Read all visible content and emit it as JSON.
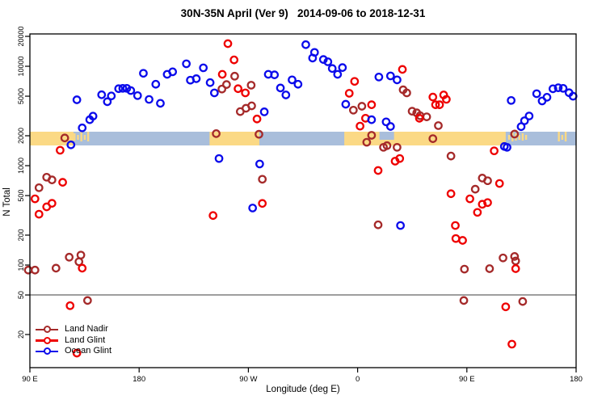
{
  "chart_data": {
    "type": "scatter",
    "title": "30N-35N April (Ver 9)   2014-09-06 to 2018-12-31",
    "xlabel": "Longitude (deg E)",
    "ylabel": "N Total",
    "x_axis": {
      "range_deg": [
        90,
        540
      ],
      "ticks_deg": [
        90,
        180,
        270,
        360,
        450,
        540
      ],
      "tick_labels": [
        "90 E",
        "180",
        "90 W",
        "0",
        "90 E",
        "180"
      ],
      "note": "axis wraps eastward from 90E around the globe to 180"
    },
    "y_axis": {
      "scale": "log",
      "ticks": [
        20000,
        10000,
        5000,
        2000,
        1000,
        500,
        200,
        100,
        50,
        20
      ],
      "range": [
        12,
        22000
      ]
    },
    "reference_line_y": 50,
    "legend_position": "bottom-left-inside",
    "grid": false,
    "legend": [
      {
        "id": "land-nadir",
        "name": "Land Nadir",
        "color": "#A52A2A"
      },
      {
        "id": "land-glint",
        "name": "Land Glint",
        "color": "#EE0000"
      },
      {
        "id": "ocean-glint",
        "name": "Ocean Glint",
        "color": "#0B0BEB"
      }
    ],
    "map_strip": {
      "center_value": 2000,
      "sea_color": "#A9BEDB",
      "land_color": "#FBD985",
      "land_segments_deg": [
        [
          90,
          126
        ],
        [
          238,
          279
        ],
        [
          349,
          482
        ]
      ],
      "sea_notches_deg": [
        [
          378,
          390
        ]
      ],
      "island_speckles_deg": [
        [
          126,
          137.5
        ],
        [
          484,
          498
        ],
        [
          525,
          532
        ]
      ]
    },
    "series": [
      {
        "id": "land-nadir",
        "name": "Land Nadir",
        "color": "#A52A2A",
        "points": [
          [
            88.7,
            89
          ],
          [
            94.2,
            89
          ],
          [
            97.5,
            600
          ],
          [
            103.8,
            765
          ],
          [
            108.2,
            719
          ],
          [
            111.5,
            93
          ],
          [
            118.7,
            1900
          ],
          [
            122.4,
            120
          ],
          [
            130.4,
            108
          ],
          [
            132,
            126
          ],
          [
            137.5,
            44
          ],
          [
            243.5,
            2100
          ],
          [
            248.2,
            5900
          ],
          [
            252,
            6550
          ],
          [
            258.7,
            7950
          ],
          [
            263.3,
            3500
          ],
          [
            268,
            3780
          ],
          [
            272.3,
            6450
          ],
          [
            272.7,
            4000
          ],
          [
            278.7,
            2070
          ],
          [
            281.5,
            730
          ],
          [
            356.5,
            3620
          ],
          [
            363.5,
            3960
          ],
          [
            367.5,
            1720
          ],
          [
            371.5,
            2020
          ],
          [
            376.9,
            254
          ],
          [
            381.3,
            1530
          ],
          [
            384.2,
            1590
          ],
          [
            392.5,
            1530
          ],
          [
            397.5,
            5800
          ],
          [
            400.5,
            5400
          ],
          [
            404.9,
            3530
          ],
          [
            408.7,
            3400
          ],
          [
            411.5,
            3180
          ],
          [
            416.9,
            3100
          ],
          [
            422,
            1870
          ],
          [
            426.5,
            2530
          ],
          [
            436.9,
            1250
          ],
          [
            447.5,
            44
          ],
          [
            448,
            91
          ],
          [
            456.9,
            580
          ],
          [
            462.7,
            750
          ],
          [
            467.1,
            705
          ],
          [
            468.7,
            92
          ],
          [
            479.8,
            118
          ],
          [
            489.3,
            2080
          ],
          [
            489.3,
            122
          ],
          [
            490.2,
            110
          ],
          [
            496,
            43
          ]
        ]
      },
      {
        "id": "land-glint",
        "name": "Land Glint",
        "color": "#EE0000",
        "points": [
          [
            94.2,
            464
          ],
          [
            97.5,
            325
          ],
          [
            103.8,
            385
          ],
          [
            108.2,
            418
          ],
          [
            114.9,
            1430
          ],
          [
            117,
            680
          ],
          [
            123.1,
            39
          ],
          [
            128.7,
            13
          ],
          [
            133.1,
            93
          ],
          [
            240.9,
            315
          ],
          [
            248.5,
            8300
          ],
          [
            253.1,
            16900
          ],
          [
            258.2,
            11600
          ],
          [
            261.5,
            5950
          ],
          [
            267.5,
            5400
          ],
          [
            277.1,
            2950
          ],
          [
            281.5,
            417
          ],
          [
            353.1,
            5350
          ],
          [
            357.5,
            7050
          ],
          [
            362,
            2500
          ],
          [
            366.5,
            3000
          ],
          [
            371.5,
            4100
          ],
          [
            376.9,
            894
          ],
          [
            390.9,
            1110
          ],
          [
            394.7,
            1180
          ],
          [
            396.9,
            9300
          ],
          [
            410.9,
            3000
          ],
          [
            422,
            4900
          ],
          [
            424.2,
            4100
          ],
          [
            427.5,
            4100
          ],
          [
            430.9,
            5150
          ],
          [
            433.1,
            4650
          ],
          [
            436.9,
            522
          ],
          [
            440.5,
            250
          ],
          [
            440.9,
            185
          ],
          [
            446.5,
            177
          ],
          [
            452.5,
            464
          ],
          [
            458.7,
            339
          ],
          [
            462.7,
            409
          ],
          [
            467.1,
            425
          ],
          [
            472.5,
            1410
          ],
          [
            476.9,
            662
          ],
          [
            482,
            38
          ],
          [
            487.1,
            16
          ],
          [
            490.2,
            92
          ]
        ]
      },
      {
        "id": "ocean-glint",
        "name": "Ocean Glint",
        "color": "#0B0BEB",
        "points": [
          [
            123.8,
            1620
          ],
          [
            128.7,
            4600
          ],
          [
            133.1,
            2400
          ],
          [
            139.3,
            2900
          ],
          [
            142,
            3150
          ],
          [
            149.1,
            5170
          ],
          [
            153.8,
            4400
          ],
          [
            157.1,
            5030
          ],
          [
            163.1,
            5950
          ],
          [
            166.5,
            6000
          ],
          [
            169.8,
            6000
          ],
          [
            173.1,
            5700
          ],
          [
            178.7,
            5070
          ],
          [
            183.5,
            8500
          ],
          [
            188.2,
            4640
          ],
          [
            193.7,
            6600
          ],
          [
            197.5,
            4240
          ],
          [
            203.1,
            8300
          ],
          [
            207.6,
            8800
          ],
          [
            218.9,
            10600
          ],
          [
            222.2,
            7250
          ],
          [
            227.1,
            7500
          ],
          [
            232.9,
            9650
          ],
          [
            238.5,
            6850
          ],
          [
            242,
            5400
          ],
          [
            245.8,
            1180
          ],
          [
            273.5,
            375
          ],
          [
            279.3,
            1040
          ],
          [
            283.1,
            3480
          ],
          [
            286.4,
            8300
          ],
          [
            291.5,
            8200
          ],
          [
            296.4,
            6050
          ],
          [
            300.9,
            5150
          ],
          [
            306,
            7300
          ],
          [
            310.9,
            6600
          ],
          [
            317.3,
            16500
          ],
          [
            322.9,
            12100
          ],
          [
            324.5,
            13800
          ],
          [
            331.8,
            11700
          ],
          [
            335.5,
            11100
          ],
          [
            339.1,
            9500
          ],
          [
            343.5,
            8300
          ],
          [
            347.5,
            9700
          ],
          [
            350.2,
            4150
          ],
          [
            371.5,
            2900
          ],
          [
            377.5,
            7800
          ],
          [
            383.5,
            2760
          ],
          [
            387.1,
            8000
          ],
          [
            387.1,
            2480
          ],
          [
            392.5,
            7300
          ],
          [
            395.3,
            250
          ],
          [
            480.9,
            1560
          ],
          [
            483.1,
            1530
          ],
          [
            486.5,
            4530
          ],
          [
            494.7,
            2470
          ],
          [
            497.5,
            2830
          ],
          [
            501.3,
            3160
          ],
          [
            507.5,
            5300
          ],
          [
            512,
            4480
          ],
          [
            516,
            4880
          ],
          [
            520.9,
            5940
          ],
          [
            525.3,
            6080
          ],
          [
            529.3,
            6000
          ],
          [
            534.2,
            5420
          ],
          [
            537.5,
            5000
          ]
        ]
      }
    ]
  }
}
